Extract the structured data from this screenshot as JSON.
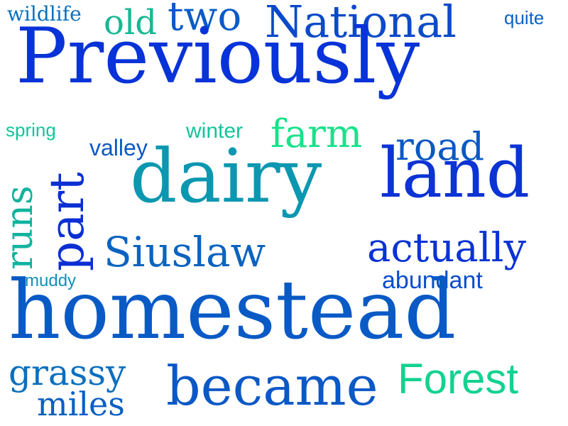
{
  "word_cloud": {
    "words": {
      "previously": {
        "text": "Previously",
        "color": "#0833d8"
      },
      "homestead": {
        "text": "homestead",
        "color": "#0a5ac6"
      },
      "dairy": {
        "text": "dairy",
        "color": "#0b97b0"
      },
      "land": {
        "text": "land",
        "color": "#0b33d5"
      },
      "national": {
        "text": "National",
        "color": "#0b4ac9"
      },
      "old": {
        "text": "old",
        "color": "#14b993"
      },
      "two": {
        "text": "two",
        "color": "#0a5ac6"
      },
      "wildlife": {
        "text": "wildlife",
        "color": "#0b70bd"
      },
      "quite": {
        "text": "quite",
        "color": "#0d62c1"
      },
      "spring": {
        "text": "spring",
        "color": "#12c59a"
      },
      "winter": {
        "text": "winter",
        "color": "#15c39a"
      },
      "farm": {
        "text": "farm",
        "color": "#19e28a"
      },
      "road": {
        "text": "road",
        "color": "#0b58c4"
      },
      "valley": {
        "text": "valley",
        "color": "#0b58c4"
      },
      "part": {
        "text": "part",
        "color": "#0b2fd4"
      },
      "runs": {
        "text": "runs",
        "color": "#0fb39e"
      },
      "siuslaw": {
        "text": "Siuslaw",
        "color": "#0b63c0"
      },
      "actually": {
        "text": "actually",
        "color": "#0a33d5"
      },
      "abundant": {
        "text": "abundant",
        "color": "#0b4dcc"
      },
      "muddy": {
        "text": "muddy",
        "color": "#1290bb"
      },
      "grassy": {
        "text": "grassy",
        "color": "#0b6fbe"
      },
      "miles": {
        "text": "miles",
        "color": "#0b5fc3"
      },
      "became": {
        "text": "became",
        "color": "#0b58c6"
      },
      "forest": {
        "text": "Forest",
        "color": "#13d28f"
      }
    }
  }
}
